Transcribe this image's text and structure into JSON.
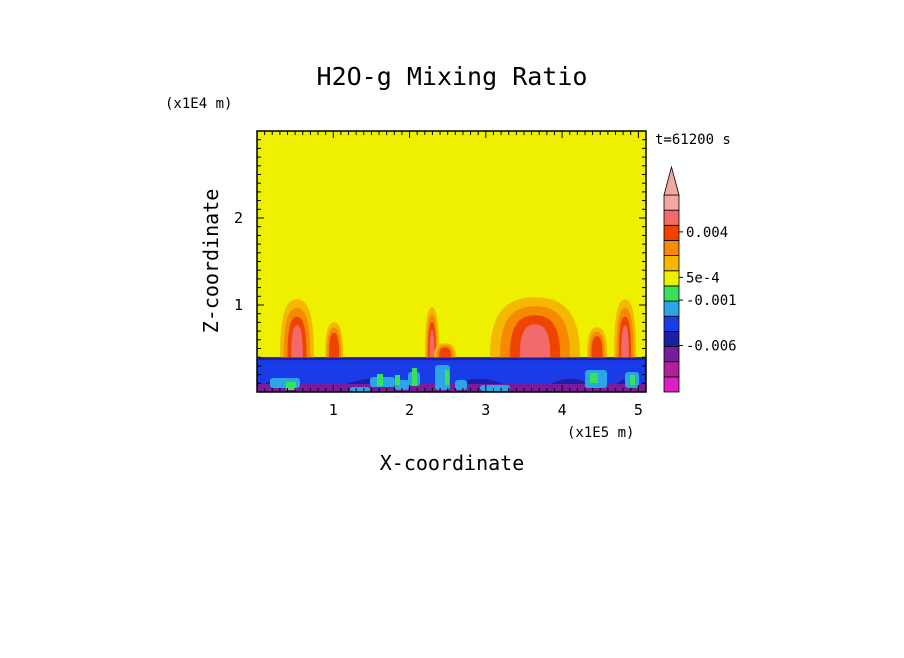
{
  "chart_data": {
    "type": "heatmap",
    "title": "H2O-g Mixing Ratio",
    "xlabel": "X-coordinate",
    "ylabel": "Z-coordinate",
    "x_scale_label": "(x1E5 m)",
    "y_scale_label": "(x1E4 m)",
    "time_label": "t=61200 s",
    "xlim": [
      0,
      5.1
    ],
    "ylim": [
      0,
      3
    ],
    "x_ticks": [
      1,
      2,
      3,
      4,
      5
    ],
    "y_ticks": [
      1,
      2
    ],
    "colorbar": {
      "labels": [
        {
          "text": "0.004",
          "level": 7
        },
        {
          "text": "5e-4",
          "level": 5
        },
        {
          "text": "-0.001",
          "level": 4
        },
        {
          "text": "-0.006",
          "level": 2
        }
      ],
      "colors": [
        "#e01dc0",
        "#b21e9c",
        "#7a1c9c",
        "#1d1da8",
        "#1a3ce8",
        "#2aa6e8",
        "#39e05a",
        "#eef000",
        "#f5b800",
        "#f58a00",
        "#ee4400",
        "#f26a6a",
        "#f4a7a0"
      ]
    },
    "fields": {
      "background_mixing_ratio": "5e-4 to 0.001",
      "colors": {
        "background": "#eef000",
        "lower_layer": "#1a3ce8",
        "deep_lower": "#1d1da8",
        "purple": "#7a1c9c",
        "orange": "#f58a00",
        "light_orange": "#f5b800",
        "red": "#ee4400",
        "pink": "#f26a6a",
        "cyan": "#2aa6e8",
        "green": "#39e05a"
      }
    }
  }
}
